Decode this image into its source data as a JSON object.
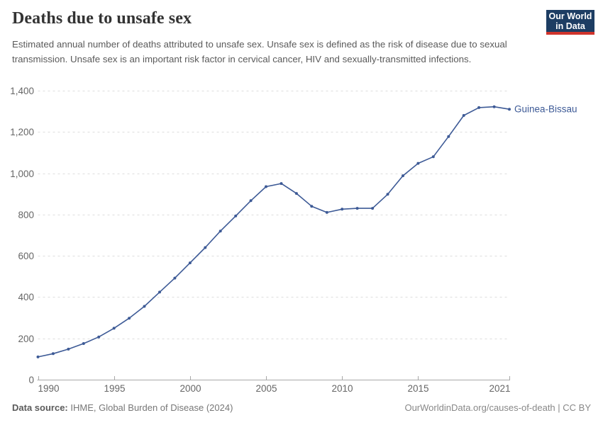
{
  "header": {
    "title": "Deaths due to unsafe sex",
    "subtitle": "Estimated annual number of deaths attributed to unsafe sex. Unsafe sex is defined as the risk of disease due to sexual transmission. Unsafe sex is an important risk factor in cervical cancer, HIV and sexually-transmitted infections.",
    "logo": {
      "line1": "Our World",
      "line2": "in Data",
      "bg_color": "#1d3d63",
      "accent_color": "#d0342c"
    }
  },
  "chart_data": {
    "type": "line",
    "title": "Deaths due to unsafe sex",
    "xlabel": "",
    "ylabel": "",
    "xlim": [
      1990,
      2021
    ],
    "ylim": [
      0,
      1400
    ],
    "x_ticks": [
      1990,
      1995,
      2000,
      2005,
      2010,
      2015,
      2021
    ],
    "y_ticks": [
      0,
      200,
      400,
      600,
      800,
      1000,
      1200,
      1400
    ],
    "grid": "horizontal-dashed",
    "legend_position": "end-of-line-label",
    "series": [
      {
        "name": "Guinea-Bissau",
        "color": "#3d5a96",
        "x": [
          1990,
          1991,
          1992,
          1993,
          1994,
          1995,
          1996,
          1997,
          1998,
          1999,
          2000,
          2001,
          2002,
          2003,
          2004,
          2005,
          2006,
          2007,
          2008,
          2009,
          2010,
          2011,
          2012,
          2013,
          2014,
          2015,
          2016,
          2017,
          2018,
          2019,
          2020,
          2021
        ],
        "values": [
          110,
          126,
          148,
          175,
          207,
          249,
          298,
          355,
          424,
          492,
          566,
          640,
          720,
          793,
          867,
          935,
          950,
          902,
          840,
          810,
          826,
          830,
          830,
          898,
          988,
          1048,
          1080,
          1178,
          1280,
          1318,
          1322,
          1310
        ]
      }
    ],
    "colors": {
      "line": "#3d5a96",
      "grid": "#dddddd",
      "axis": "#a8a8a8",
      "tick_text": "#666666"
    }
  },
  "footer": {
    "source_label": "Data source:",
    "source_value": " IHME, Global Burden of Disease (2024)",
    "credit": "OurWorldinData.org/causes-of-death | CC BY"
  }
}
